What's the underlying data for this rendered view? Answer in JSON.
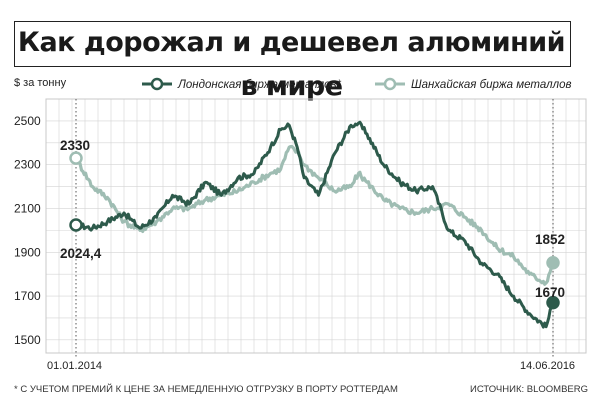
{
  "chart_data": {
    "type": "line",
    "title": "Как дорожал и дешевел алюминий в мире",
    "ylabel": "$ за тонну",
    "yticks": [
      1500,
      1700,
      1900,
      2100,
      2300,
      2500
    ],
    "ylim": [
      1440,
      2600
    ],
    "xlim": [
      "2014-01-01",
      "2016-06-14"
    ],
    "start_date_label": "01.01.2014",
    "end_date_label": "14.06.2016",
    "grid": true,
    "legend_position": "top",
    "series": [
      {
        "name": "Лондонская биржа металлов*",
        "color": "#2d5a4b",
        "values": [
          [
            "2014-01-01",
            2024.4
          ],
          [
            "2014-02-01",
            2010
          ],
          [
            "2014-03-01",
            2040
          ],
          [
            "2014-04-01",
            2080
          ],
          [
            "2014-05-01",
            2010
          ],
          [
            "2014-06-01",
            2060
          ],
          [
            "2014-07-01",
            2160
          ],
          [
            "2014-08-01",
            2120
          ],
          [
            "2014-09-01",
            2220
          ],
          [
            "2014-10-01",
            2160
          ],
          [
            "2014-11-01",
            2240
          ],
          [
            "2014-12-01",
            2260
          ],
          [
            "2015-01-01",
            2380
          ],
          [
            "2015-01-20",
            2460
          ],
          [
            "2015-02-05",
            2480
          ],
          [
            "2015-02-20",
            2380
          ],
          [
            "2015-03-05",
            2240
          ],
          [
            "2015-04-01",
            2160
          ],
          [
            "2015-05-01",
            2350
          ],
          [
            "2015-06-01",
            2480
          ],
          [
            "2015-06-15",
            2490
          ],
          [
            "2015-07-01",
            2440
          ],
          [
            "2015-08-01",
            2300
          ],
          [
            "2015-09-01",
            2220
          ],
          [
            "2015-10-01",
            2180
          ],
          [
            "2015-11-01",
            2200
          ],
          [
            "2015-12-01",
            2000
          ],
          [
            "2016-01-01",
            1950
          ],
          [
            "2016-02-01",
            1850
          ],
          [
            "2016-03-01",
            1800
          ],
          [
            "2016-04-01",
            1700
          ],
          [
            "2016-05-01",
            1620
          ],
          [
            "2016-06-01",
            1560
          ],
          [
            "2016-06-14",
            1670
          ]
        ]
      },
      {
        "name": "Шанхайская биржа металлов",
        "color": "#9fbdb3",
        "values": [
          [
            "2014-01-01",
            2330
          ],
          [
            "2014-02-01",
            2200
          ],
          [
            "2014-03-01",
            2150
          ],
          [
            "2014-04-01",
            2040
          ],
          [
            "2014-05-01",
            2000
          ],
          [
            "2014-06-01",
            2040
          ],
          [
            "2014-07-01",
            2100
          ],
          [
            "2014-08-01",
            2100
          ],
          [
            "2014-09-01",
            2140
          ],
          [
            "2014-10-01",
            2160
          ],
          [
            "2014-11-01",
            2180
          ],
          [
            "2014-12-01",
            2220
          ],
          [
            "2015-01-01",
            2260
          ],
          [
            "2015-01-20",
            2280
          ],
          [
            "2015-02-05",
            2380
          ],
          [
            "2015-02-20",
            2360
          ],
          [
            "2015-03-05",
            2300
          ],
          [
            "2015-04-01",
            2240
          ],
          [
            "2015-05-01",
            2180
          ],
          [
            "2015-06-01",
            2200
          ],
          [
            "2015-06-15",
            2260
          ],
          [
            "2015-07-01",
            2220
          ],
          [
            "2015-08-01",
            2140
          ],
          [
            "2015-09-01",
            2100
          ],
          [
            "2015-10-01",
            2080
          ],
          [
            "2015-11-01",
            2100
          ],
          [
            "2015-12-01",
            2120
          ],
          [
            "2016-01-01",
            2060
          ],
          [
            "2016-02-01",
            2000
          ],
          [
            "2016-03-01",
            1920
          ],
          [
            "2016-04-01",
            1880
          ],
          [
            "2016-05-01",
            1800
          ],
          [
            "2016-06-01",
            1760
          ],
          [
            "2016-06-14",
            1852
          ]
        ]
      }
    ],
    "annotations": [
      {
        "text": "2330",
        "series": 1,
        "point": "start"
      },
      {
        "text": "2024,4",
        "series": 0,
        "point": "start"
      },
      {
        "text": "1852",
        "series": 1,
        "point": "end"
      },
      {
        "text": "1670",
        "series": 0,
        "point": "end"
      }
    ]
  },
  "footer": {
    "note": "* С УЧЕТОМ ПРЕМИЙ К ЦЕНЕ ЗА НЕМЕДЛЕННУЮ ОТГРУЗКУ В ПОРТУ РОТТЕРДАМ",
    "source": "ИСТОЧНИК: BLOOMBERG"
  }
}
